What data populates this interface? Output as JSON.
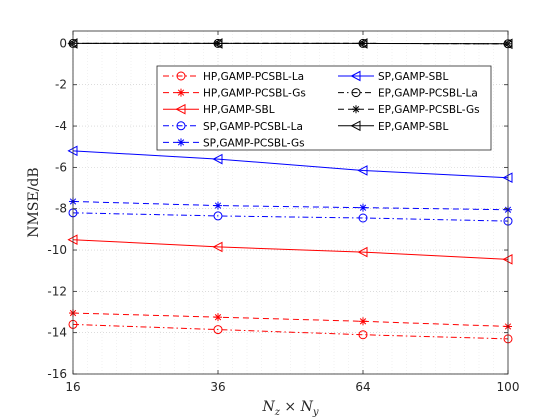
{
  "chart_data": {
    "type": "line",
    "xlabel": "N_z × N_y",
    "ylabel": "NMSE/dB",
    "categories": [
      "16",
      "36",
      "64",
      "100"
    ],
    "ylim": [
      -16,
      0.6
    ],
    "yticks": [
      0,
      -2,
      -4,
      -6,
      -8,
      -10,
      -12,
      -14,
      -16
    ],
    "grid": true,
    "legend_position": "top-right",
    "series": [
      {
        "name": "HP,GAMP-PCSBL-La",
        "values": [
          -13.6,
          -13.85,
          -14.1,
          -14.3
        ],
        "color": "#ff0000",
        "dash": "dashdot",
        "marker": "circle"
      },
      {
        "name": "HP,GAMP-PCSBL-Gs",
        "values": [
          -13.05,
          -13.25,
          -13.45,
          -13.7
        ],
        "color": "#ff0000",
        "dash": "dashed",
        "marker": "star"
      },
      {
        "name": "HP,GAMP-SBL",
        "values": [
          -9.5,
          -9.85,
          -10.1,
          -10.45
        ],
        "color": "#ff0000",
        "dash": "solid",
        "marker": "triangle-left"
      },
      {
        "name": "SP,GAMP-PCSBL-La",
        "values": [
          -8.2,
          -8.35,
          -8.45,
          -8.6
        ],
        "color": "#0000ff",
        "dash": "dashdot",
        "marker": "circle"
      },
      {
        "name": "SP,GAMP-PCSBL-Gs",
        "values": [
          -7.65,
          -7.85,
          -7.95,
          -8.05
        ],
        "color": "#0000ff",
        "dash": "dashed",
        "marker": "star"
      },
      {
        "name": "SP,GAMP-SBL",
        "values": [
          -5.2,
          -5.6,
          -6.15,
          -6.5
        ],
        "color": "#0000ff",
        "dash": "solid",
        "marker": "triangle-left"
      },
      {
        "name": "EP,GAMP-PCSBL-La",
        "values": [
          0.0,
          0.0,
          0.0,
          -0.02
        ],
        "color": "#000000",
        "dash": "dashdot",
        "marker": "circle"
      },
      {
        "name": "EP,GAMP-PCSBL-Gs",
        "values": [
          0.0,
          0.0,
          0.0,
          -0.02
        ],
        "color": "#000000",
        "dash": "dashed",
        "marker": "star"
      },
      {
        "name": "EP,GAMP-SBL",
        "values": [
          0.0,
          0.0,
          0.0,
          -0.02
        ],
        "color": "#000000",
        "dash": "solid",
        "marker": "triangle-left"
      }
    ],
    "legend_order": [
      0,
      5,
      1,
      6,
      2,
      7,
      3,
      8,
      4
    ]
  }
}
